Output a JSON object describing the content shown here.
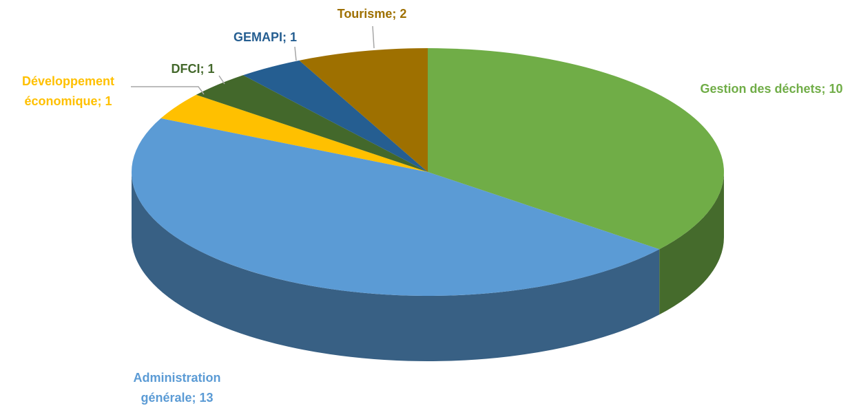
{
  "chart_data": {
    "type": "pie",
    "labels": [
      "Gestion des déchets; 10",
      "Administration générale; 13",
      "Développement économique; 1",
      "DFCI; 1",
      "GEMAPI; 1",
      "Tourisme; 2"
    ],
    "values": [
      10,
      13,
      1,
      1,
      1,
      2
    ],
    "colors": [
      "#70ad47",
      "#5b9bd5",
      "#ffc000",
      "#43682b",
      "#255e91",
      "#9e7000"
    ],
    "label_colors": [
      "#70ad47",
      "#5b9bd5",
      "#ffc000",
      "#43682b",
      "#255e91",
      "#9e7000"
    ]
  }
}
